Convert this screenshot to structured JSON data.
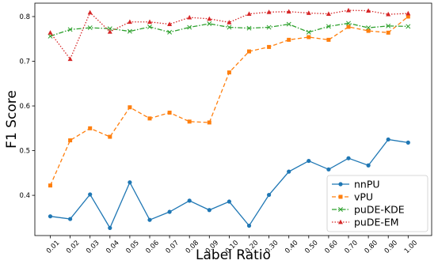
{
  "chart_data": {
    "type": "line",
    "title": "",
    "xlabel": "Label Ratio",
    "ylabel": "F1 Score",
    "categories": [
      "0.01",
      "0.02",
      "0.03",
      "0.04",
      "0.05",
      "0.06",
      "0.07",
      "0.08",
      "0.09",
      "0.10",
      "0.20",
      "0.30",
      "0.40",
      "0.50",
      "0.60",
      "0.70",
      "0.80",
      "0.90",
      "1.00"
    ],
    "y_ticks": [
      "0.4",
      "0.5",
      "0.6",
      "0.7",
      "0.8"
    ],
    "ylim": [
      0.31,
      0.83
    ],
    "grid": false,
    "legend_position": "lower-right",
    "series": [
      {
        "name": "nnPU",
        "color": "#1f77b4",
        "line_style": "solid",
        "marker": "circle",
        "values": [
          0.353,
          0.347,
          0.402,
          0.327,
          0.429,
          0.345,
          0.363,
          0.388,
          0.367,
          0.386,
          0.332,
          0.401,
          0.453,
          0.477,
          0.458,
          0.483,
          0.467,
          0.525,
          0.518
        ]
      },
      {
        "name": "vPU",
        "color": "#ff7f0e",
        "line_style": "dashed",
        "marker": "square",
        "values": [
          0.422,
          0.523,
          0.55,
          0.531,
          0.597,
          0.572,
          0.585,
          0.565,
          0.563,
          0.675,
          0.722,
          0.732,
          0.748,
          0.754,
          0.748,
          0.777,
          0.768,
          0.764,
          0.8
        ]
      },
      {
        "name": "puDE-KDE",
        "color": "#2ca02c",
        "line_style": "dashdot",
        "marker": "x",
        "values": [
          0.756,
          0.771,
          0.775,
          0.773,
          0.767,
          0.777,
          0.765,
          0.776,
          0.784,
          0.776,
          0.774,
          0.776,
          0.783,
          0.765,
          0.778,
          0.785,
          0.775,
          0.779,
          0.778
        ]
      },
      {
        "name": "puDE-EM",
        "color": "#d62728",
        "line_style": "dotted",
        "marker": "triangle",
        "values": [
          0.764,
          0.705,
          0.809,
          0.766,
          0.788,
          0.788,
          0.783,
          0.798,
          0.795,
          0.787,
          0.806,
          0.81,
          0.811,
          0.808,
          0.806,
          0.814,
          0.813,
          0.805,
          0.807
        ]
      }
    ]
  }
}
